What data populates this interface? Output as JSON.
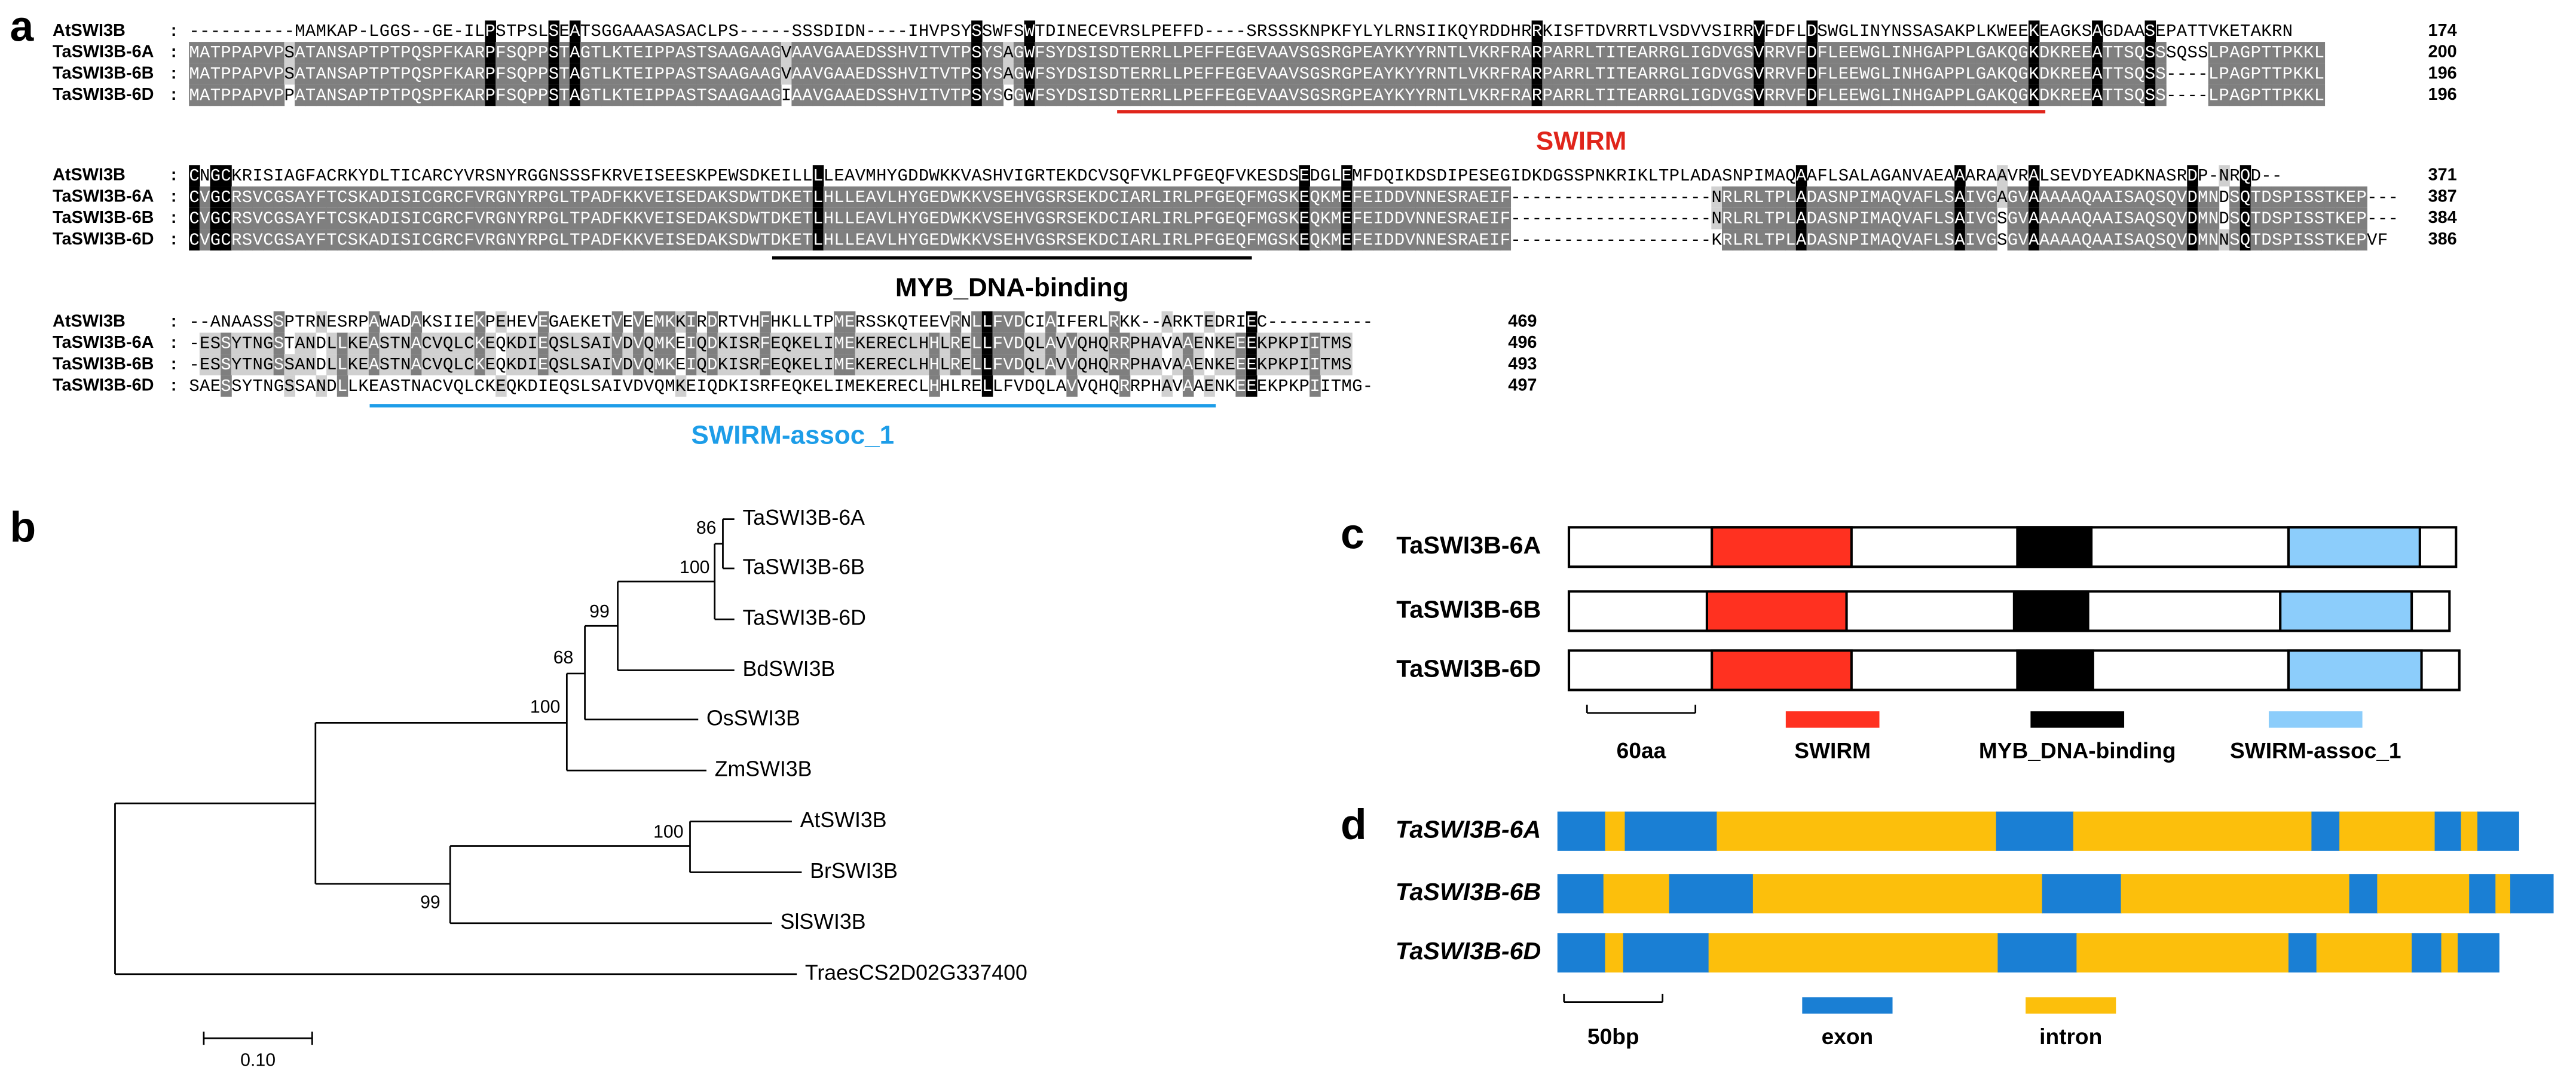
{
  "alignment": {
    "panel": "a",
    "separator": ":",
    "blocks": [
      {
        "rows": [
          {
            "name": "AtSWI3B",
            "sequence": "----------MAMKAP-LGGS--GE-ILPSTPSLSEATSGGAAASASACLPS-----SSSDIDN----IHVPSYSSWFSWTDINECEVRSLPEFFD----SRSSSKNPKFYLYLRNSIIKQYRDDHRRKISFTDVRRTLVSDVVSIRRVFDFLDSWGLINYNSSASAKPLKWEEKEAGKSAGDAASEPATTVKETAKRN",
            "end": 174
          },
          {
            "name": "TaSWI3B-6A",
            "sequence": "MATPPAPVPSATANSAPTPTPQSPFKARPFSQPPSTAGTLKTEIPPASTSAAGAAGVAAVGAAEDSSHVITVTPSYSAGWFSYDSISDTERRLLPEFFEGEVAAVSGSRGPEAYKYYRNTLVKRFRARPARRLTITEARRGLIGDVGSVRRVFDFLEEWGLINHGAPPLGAKQGKDKREEATTSQSSSQSSLPAGPTTPKKL",
            "end": 200
          },
          {
            "name": "TaSWI3B-6B",
            "sequence": "MATPPAPVPSATANSAPTPTPQSPFKARPFSQPPSTAGTLKTEIPPASTSAAGAAGVAAVGAAEDSSHVITVTPSYSAGWFSYDSISDTERRLLPEFFEGEVAAVSGSRGPEAYKYYRNTLVKRFRARPARRLTITEARRGLIGDVGSVRRVFDFLEEWGLINHGAPPLGAKQGKDKREEATTSQSS----LPAGPTTPKKL",
            "end": 196
          },
          {
            "name": "TaSWI3B-6D",
            "sequence": "MATPPAPVPPATANSAPTPTPQSPFKARPFSQPPSTAGTLKTEIPPASTSAAGAAGIAAVGAAEDSSHVITVTPSYSGGWFSYDSISDTERRLLPEFFEGEVAAVSGSRGPEAYKYYRNTLVKRFRARPARRLTITEARRGLIGDVGSVRRVFDFLEEWGLINHGAPPLGAKQGKDKREEATTSQSS----LPAGPTTPKKL",
            "end": 196
          }
        ]
      },
      {
        "rows": [
          {
            "name": "AtSWI3B",
            "sequence": "CNGCKRISIAGFACRKYDLTICARCYVRSNYRGGNSSSFKRVEISEESKPEWSDKEILLLLEAVMHYGDDWKKVASHVIGRTEKDCVSQFVKLPFGEQFVKESDSEDGLEMFDQIKDSDIPESEGIDKDGSSPNKRIKLTPLADASNPIMAQAAFLSALAGANVAEAAARAAVRALSEVDYEADKNASRDP-NRQD--",
            "end": 371
          },
          {
            "name": "TaSWI3B-6A",
            "sequence": "CVGCRSVCGSAYFTCSKADISICGRCFVRGNYRPGLTPADFKKVEISEDAKSDWTDKETLHLLEAVLHYGEDWKKVSEHVGSRSEKDCIARLIRLPFGEQFMGSKEQKMEFEIDDVNNESRAEIF-------------------NRLRLTPLADASNPIMAQVAFLSAIVGAGVAAAAAQAAISAQSQVDMNDSQTDSPISSTKEP---",
            "end": 387
          },
          {
            "name": "TaSWI3B-6B",
            "sequence": "CVGCRSVCGSAYFTCSKADISICGRCFVRGNYRPGLTPADFKKVEISEDAKSDWTDKETLHLLEAVLHYGEDWKKVSEHVGSRSEKDCIARLIRLPFGEQFMGSKEQKMEFEIDDVNNESRAEIF-------------------NRLRLTPLADASNPIMAQVAFLSAIVGSGVAAAAAQAAISAQSQVDMNDSQTDSPISSTKEP---",
            "end": 384
          },
          {
            "name": "TaSWI3B-6D",
            "sequence": "CVGCRSVCGSAYFTCSKADISICGRCFVRGNYRPGLTPADFKKVEISEDAKSDWTDKETLHLLEAVLHYGEDWKKVSEHVGSRSEKDCIARLIRLPFGEQFMGSKEQKMEFEIDDVNNESRAEIF-------------------KRLRLTPLADASNPIMAQVAFLSAIVGSGVAAAAAQAAISAQSQVDMNNSQTDSPISSTKEPVF",
            "end": 386
          }
        ]
      },
      {
        "rows": [
          {
            "name": "AtSWI3B",
            "sequence": "--ANAASSSPTRNESRPAWADAKSIIEKPEHEVEGAEKETVEVEMKKIRDRTVHFHKLLTPMERSSKQTEEVRNLLFVDCIAIFERLRKK--ARKTEDRIEC----------",
            "end": 469
          },
          {
            "name": "TaSWI3B-6A",
            "sequence": "-ESSYTNGSTANDLLKEASTNACVQLCKEQKDIEQSLSAIVDVQMKEIQDKISRFEQKELIMEKERECLHHLRELLFVDQLAVVQHQRRPHAVAAENKEEEKPKPIITMS",
            "end": 496
          },
          {
            "name": "TaSWI3B-6B",
            "sequence": "-ESSYTNGSSANDLLKEASTNACVQLCKEQKDIEQSLSAIVDVQMKEIQDKISRFEQKELIMEKERECLHHLRELLFVDQLAVVQHQRRPHAVAAENKEEEKPKPIITMS",
            "end": 493
          },
          {
            "name": "TaSWI3B-6D",
            "sequence": "SAESSYTNGSSANDLLKEASTNACVQLCKEQKDIEQSLSAIVDVQMKEIQDKISRFEQKELIMEKERECLHHLRELLFVDQLAVVQHQRRPHAVAAENKEEEKPKPIITMG-",
            "end": 497
          }
        ]
      }
    ],
    "domains": [
      "SWIRM",
      "MYB_DNA-binding",
      "SWIRM-assoc_1"
    ]
  },
  "tree": {
    "panel": "b",
    "leaves": [
      "TaSWI3B-6A",
      "TaSWI3B-6B",
      "TaSWI3B-6D",
      "BdSWI3B",
      "OsSWI3B",
      "ZmSWI3B",
      "AtSWI3B",
      "BrSWI3B",
      "SlSWI3B",
      "TraesCS2D02G337400"
    ],
    "bootstrap": [
      86,
      100,
      99,
      68,
      100,
      100,
      99
    ],
    "scale": "0.10"
  },
  "domain_map": {
    "panel": "c",
    "genes": [
      "TaSWI3B-6A",
      "TaSWI3B-6B",
      "TaSWI3B-6D"
    ],
    "scale": "60aa",
    "legend": [
      "SWIRM",
      "MYB_DNA-binding",
      "SWIRM-assoc_1"
    ]
  },
  "gene_structure": {
    "panel": "d",
    "genes": [
      "TaSWI3B-6A",
      "TaSWI3B-6B",
      "TaSWI3B-6D"
    ],
    "scale": "50bp",
    "legend": [
      "exon",
      "intron"
    ]
  }
}
